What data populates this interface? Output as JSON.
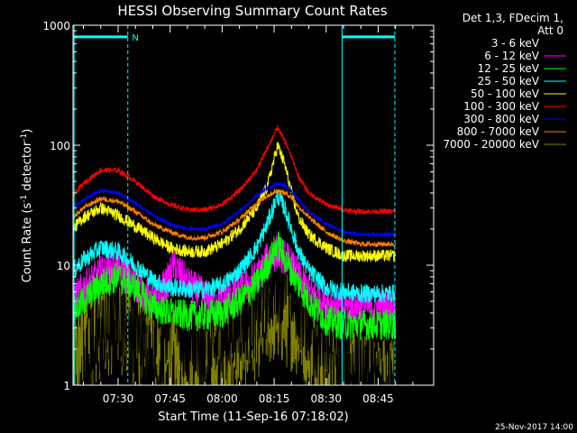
{
  "chart_data": {
    "type": "line",
    "title": "HESSI Observing Summary Count Rates",
    "xlabel": "Start Time (11-Sep-16 07:18:02)",
    "ylabel_main": "Count Rate (s",
    "ylabel_sup1": "-1",
    "ylabel_mid": " detector",
    "ylabel_sup2": "-1",
    "ylabel_end": ")",
    "yscale": "log",
    "xlim": [
      437,
      541
    ],
    "ylim": [
      1,
      1000
    ],
    "x_ticks": [
      {
        "value": 450,
        "label": "07:30"
      },
      {
        "value": 465,
        "label": "07:45"
      },
      {
        "value": 480,
        "label": "08:00"
      },
      {
        "value": 495,
        "label": "08:15"
      },
      {
        "value": 510,
        "label": "08:30"
      },
      {
        "value": 525,
        "label": "08:45"
      }
    ],
    "y_ticks": [
      {
        "value": 1,
        "label": "1"
      },
      {
        "value": 10,
        "label": "10"
      },
      {
        "value": 100,
        "label": "100"
      },
      {
        "value": 1000,
        "label": "1000"
      }
    ],
    "legend_header": [
      "Det 1,3, FDecim 1,",
      "Att 0"
    ],
    "legend_position": "right",
    "timestamp": "25-Nov-2017 14:00",
    "annotations": [
      {
        "text": "N",
        "x": 454,
        "y": 800,
        "color": "#00ffff"
      }
    ],
    "night_markers": {
      "color": "#00ffff",
      "solid_x": [
        437.3,
        514.6
      ],
      "dashed_x": [
        452.8,
        529.8
      ],
      "bars": [
        {
          "x1": 437.3,
          "x2": 452.8,
          "y": 800
        },
        {
          "x1": 514.6,
          "x2": 529.8,
          "y": 800
        }
      ]
    },
    "series": [
      {
        "name": "3 - 6 keV",
        "color": "#000000",
        "x": [
          440,
          445,
          450,
          455,
          460,
          462,
          464,
          466,
          468,
          470,
          475,
          480,
          485,
          490,
          493,
          496,
          499,
          502,
          505,
          510,
          515,
          520,
          525,
          530
        ],
        "y": [
          1.5,
          2.5,
          3.5,
          3.0,
          1.5,
          1.2,
          3.0,
          11.0,
          3.0,
          2.0,
          1.5,
          2.5,
          3.5,
          4.0,
          6.0,
          8.0,
          8.0,
          5.0,
          3.5,
          2.0,
          1.3,
          1.1,
          1.0,
          1.0
        ]
      },
      {
        "name": "6 - 12 keV",
        "color": "#ff00ff",
        "x": [
          437,
          440,
          445,
          450,
          455,
          460,
          464,
          466,
          470,
          475,
          480,
          485,
          490,
          493,
          496,
          499,
          502,
          505,
          510,
          515,
          520,
          525,
          530
        ],
        "y": [
          5.0,
          6.5,
          8.5,
          9.5,
          7.0,
          5.0,
          7.0,
          10.0,
          7.0,
          5.5,
          5.0,
          6.0,
          8.0,
          11.0,
          13.0,
          11.0,
          8.0,
          6.0,
          5.0,
          4.5,
          4.5,
          4.5,
          4.5
        ]
      },
      {
        "name": "12 - 25 keV",
        "color": "#00ff00",
        "x": [
          437,
          440,
          445,
          450,
          455,
          460,
          465,
          470,
          475,
          480,
          485,
          490,
          493,
          496,
          499,
          502,
          505,
          510,
          515,
          520,
          525,
          530
        ],
        "y": [
          4.0,
          5.0,
          7.0,
          8.0,
          6.5,
          4.5,
          4.0,
          3.8,
          3.8,
          4.0,
          5.0,
          7.0,
          10.0,
          15.0,
          10.0,
          7.0,
          5.0,
          3.5,
          3.2,
          3.2,
          3.2,
          3.2
        ]
      },
      {
        "name": "25 - 50 keV",
        "color": "#00ffff",
        "x": [
          437,
          440,
          445,
          450,
          455,
          460,
          465,
          470,
          475,
          480,
          485,
          490,
          493,
          496,
          498,
          500,
          502,
          505,
          510,
          515,
          520,
          525,
          530
        ],
        "y": [
          9.0,
          11.0,
          14.0,
          13.0,
          10.0,
          7.5,
          6.5,
          6.3,
          6.3,
          6.8,
          9.0,
          14.0,
          22.0,
          38.0,
          30.0,
          20.0,
          13.0,
          9.0,
          6.5,
          6.0,
          5.8,
          5.8,
          5.8
        ]
      },
      {
        "name": "50 - 100 keV",
        "color": "#ffff00",
        "x": [
          437,
          440,
          445,
          450,
          455,
          460,
          465,
          470,
          475,
          480,
          485,
          490,
          493,
          496,
          498,
          500,
          502,
          505,
          510,
          515,
          520,
          525,
          530
        ],
        "y": [
          20.0,
          25.0,
          30.0,
          26.0,
          21.0,
          17.0,
          14.0,
          13.0,
          13.0,
          15.0,
          20.0,
          30.0,
          45.0,
          100.0,
          70.0,
          40.0,
          25.0,
          18.0,
          14.0,
          12.0,
          12.0,
          12.0,
          12.0
        ]
      },
      {
        "name": "100 - 300 keV",
        "color": "#ff0000",
        "x": [
          437,
          440,
          445,
          450,
          455,
          460,
          465,
          470,
          475,
          480,
          485,
          490,
          493,
          496,
          498,
          500,
          502,
          505,
          510,
          515,
          520,
          525,
          530
        ],
        "y": [
          38.0,
          48.0,
          62.0,
          62.0,
          50.0,
          38.0,
          32.0,
          29.0,
          29.0,
          32.0,
          42.0,
          62.0,
          95.0,
          140.0,
          110.0,
          80.0,
          55.0,
          40.0,
          32.0,
          29.0,
          28.0,
          28.0,
          28.0
        ]
      },
      {
        "name": "300 - 800 keV",
        "color": "#0000ff",
        "x": [
          437,
          440,
          445,
          450,
          455,
          460,
          465,
          470,
          475,
          480,
          485,
          490,
          493,
          496,
          498,
          500,
          502,
          505,
          510,
          515,
          520,
          525,
          530
        ],
        "y": [
          30.0,
          35.0,
          42.0,
          40.0,
          33.0,
          26.0,
          22.0,
          20.0,
          20.0,
          22.0,
          28.0,
          38.0,
          44.0,
          48.0,
          46.0,
          42.0,
          35.0,
          28.0,
          22.0,
          19.0,
          18.0,
          18.0,
          18.0
        ]
      },
      {
        "name": "800 - 7000 keV",
        "color": "#ff8000",
        "x": [
          437,
          440,
          445,
          450,
          455,
          460,
          465,
          470,
          475,
          480,
          485,
          490,
          493,
          496,
          498,
          500,
          502,
          505,
          510,
          515,
          520,
          525,
          530
        ],
        "y": [
          25.0,
          30.0,
          36.0,
          34.0,
          28.0,
          22.0,
          19.0,
          17.0,
          17.0,
          19.0,
          24.0,
          33.0,
          38.0,
          42.0,
          40.0,
          37.0,
          31.0,
          25.0,
          19.0,
          16.0,
          15.0,
          15.0,
          15.0
        ]
      },
      {
        "name": "7000 - 20000 keV",
        "color": "#808000",
        "x": [
          437,
          440,
          445,
          450,
          455,
          460,
          465,
          470,
          475,
          480,
          485,
          490,
          495,
          500,
          505,
          510,
          515,
          520,
          525,
          530
        ],
        "y": [
          1.5,
          2.2,
          3.0,
          3.5,
          2.5,
          1.8,
          1.5,
          1.5,
          1.5,
          1.8,
          2.2,
          3.0,
          4.0,
          3.5,
          2.5,
          1.6,
          1.2,
          1.0,
          1.0,
          1.0
        ]
      }
    ]
  }
}
